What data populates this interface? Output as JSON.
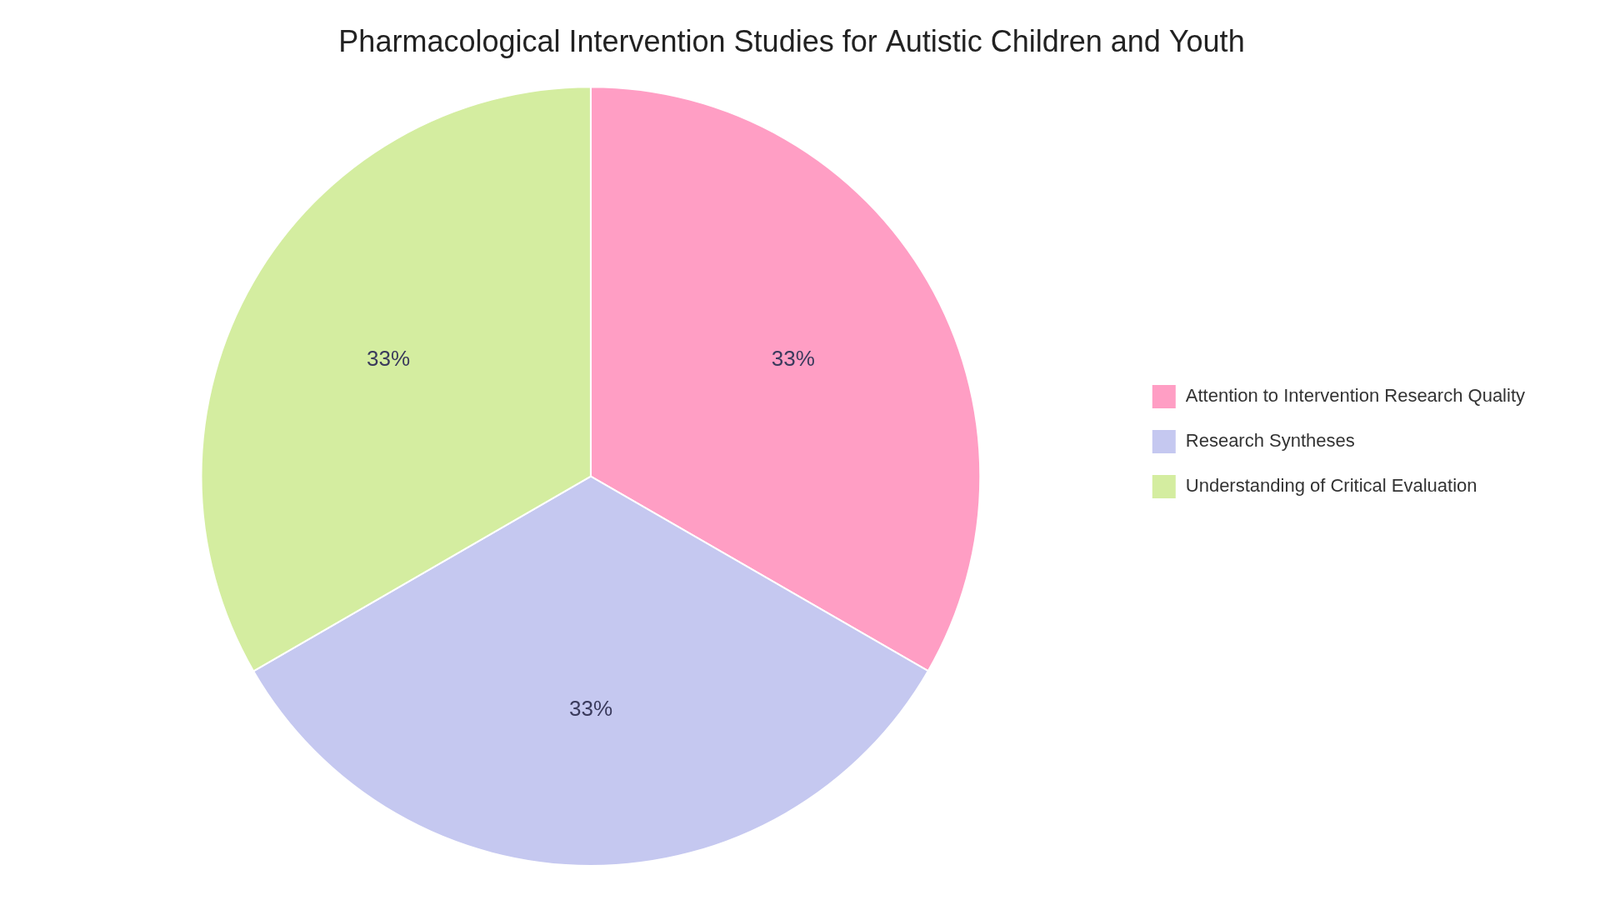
{
  "chart_data": {
    "type": "pie",
    "title": "Pharmacological Intervention Studies for Autistic Children and Youth",
    "categories": [
      "Attention to Intervention Research Quality",
      "Research Syntheses",
      "Understanding of Critical Evaluation"
    ],
    "values": [
      33.33,
      33.33,
      33.34
    ],
    "value_labels": [
      "33%",
      "33%",
      "33%"
    ],
    "colors": [
      "#FF9EC4",
      "#C5C8F0",
      "#D4EDA0"
    ],
    "data_labels": true,
    "legend": "right"
  }
}
